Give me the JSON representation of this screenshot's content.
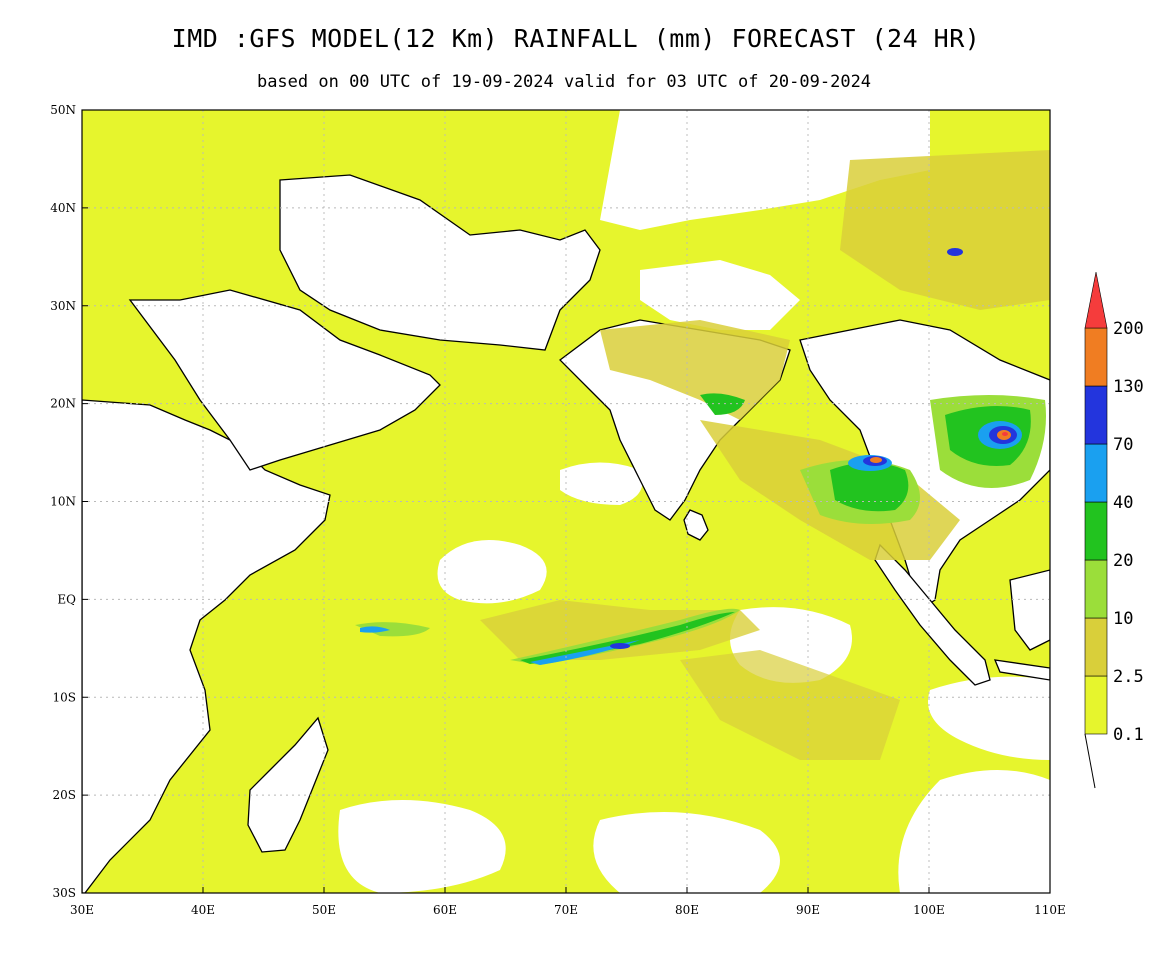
{
  "header": {
    "title": "IMD :GFS MODEL(12 Km) RAINFALL (mm) FORECAST (24 HR)",
    "subtitle": "based on 00 UTC of 19-09-2024 valid for 03 UTC of 20-09-2024"
  },
  "map": {
    "lon_range": [
      30,
      110
    ],
    "lat_range": [
      -30,
      50
    ],
    "lon_ticks": [
      {
        "value": 30,
        "label": "30E"
      },
      {
        "value": 40,
        "label": "40E"
      },
      {
        "value": 50,
        "label": "50E"
      },
      {
        "value": 60,
        "label": "60E"
      },
      {
        "value": 70,
        "label": "70E"
      },
      {
        "value": 80,
        "label": "80E"
      },
      {
        "value": 90,
        "label": "90E"
      },
      {
        "value": 100,
        "label": "100E"
      },
      {
        "value": 110,
        "label": "110E"
      }
    ],
    "lat_ticks": [
      {
        "value": 50,
        "label": "50N"
      },
      {
        "value": 40,
        "label": "40N"
      },
      {
        "value": 30,
        "label": "30N"
      },
      {
        "value": 20,
        "label": "20N"
      },
      {
        "value": 10,
        "label": "10N"
      },
      {
        "value": 0,
        "label": "EQ"
      },
      {
        "value": -10,
        "label": "10S"
      },
      {
        "value": -20,
        "label": "20S"
      },
      {
        "value": -30,
        "label": "30S"
      }
    ],
    "grid": true,
    "land_color": "#ffffff",
    "coastline_color": "#000000"
  },
  "colorbar": {
    "levels": [
      "0.1",
      "2.5",
      "10",
      "20",
      "40",
      "70",
      "130",
      "200"
    ],
    "colors": [
      "#e6f52d",
      "#d9cf3a",
      "#9bde3a",
      "#22c31f",
      "#1aa0f0",
      "#2335dd",
      "#f07d22",
      "#f53c3c"
    ]
  }
}
